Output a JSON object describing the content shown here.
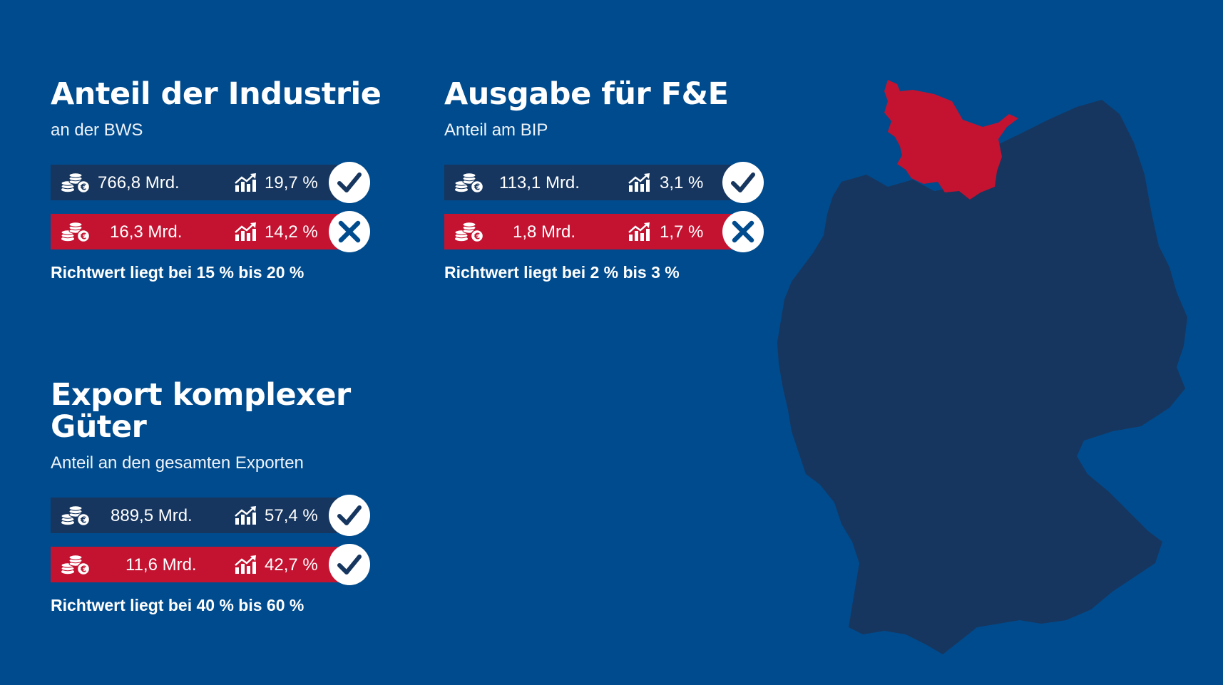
{
  "colors": {
    "background": "#004b8d",
    "dark_bar": "#16365f",
    "red_bar": "#c41331",
    "map": "#16365f",
    "highlight": "#c41331"
  },
  "panels": {
    "industrie": {
      "title": "Anteil der Industrie",
      "subtitle": "an der BWS",
      "row1": {
        "amount": "766,8 Mrd.",
        "percent": "19,7 %",
        "status": "check",
        "icon": "coins-icon"
      },
      "row2": {
        "amount": "16,3 Mrd.",
        "percent": "14,2 %",
        "status": "cross",
        "icon": "coins-icon"
      },
      "note": "Richtwert liegt bei 15 % bis 20 %"
    },
    "fue": {
      "title": "Ausgabe für F&E",
      "subtitle": "Anteil am BIP",
      "row1": {
        "amount": "113,1 Mrd.",
        "percent": "3,1 %",
        "status": "check",
        "icon": "coins-icon"
      },
      "row2": {
        "amount": "1,8 Mrd.",
        "percent": "1,7 %",
        "status": "cross",
        "icon": "coins-icon"
      },
      "note": "Richtwert liegt bei 2 % bis 3 %"
    },
    "export": {
      "title": "Export komplexer Güter",
      "subtitle": "Anteil an den gesamten Exporten",
      "row1": {
        "amount": "889,5 Mrd.",
        "percent": "57,4 %",
        "status": "check",
        "icon": "coins-icon"
      },
      "row2": {
        "amount": "11,6 Mrd.",
        "percent": "42,7 %",
        "status": "check",
        "icon": "coins-icon"
      },
      "note": "Richtwert liegt bei 40 % bis 60 %"
    }
  },
  "map": {
    "region": "germany-map",
    "highlighted_region": "schleswig-holstein-region"
  }
}
